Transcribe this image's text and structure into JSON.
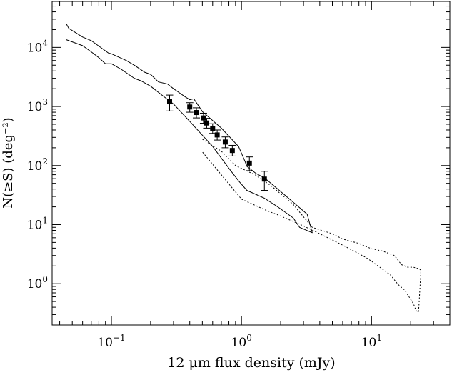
{
  "chart_data": {
    "type": "scatter",
    "xlabel": "12 μm flux density (mJy)",
    "ylabel": "N(≥S)  (deg⁻²)",
    "xscale": "log",
    "yscale": "log",
    "xlim": [
      0.035,
      40
    ],
    "ylim": [
      0.2,
      60000
    ],
    "grid": false,
    "legend": "none",
    "x_ticks": [
      {
        "value": 0.1,
        "base": "10",
        "exp": "−1"
      },
      {
        "value": 1,
        "base": "10",
        "exp": "0"
      },
      {
        "value": 10,
        "base": "10",
        "exp": "1"
      }
    ],
    "y_ticks": [
      {
        "value": 1,
        "base": "10",
        "exp": "0"
      },
      {
        "value": 10,
        "base": "10",
        "exp": "1"
      },
      {
        "value": 100,
        "base": "10",
        "exp": "2"
      },
      {
        "value": 1000,
        "base": "10",
        "exp": "3"
      },
      {
        "value": 10000,
        "base": "10",
        "exp": "4"
      }
    ],
    "points": [
      {
        "x": 0.28,
        "y": 1200,
        "ylo": 840,
        "yhi": 1560
      },
      {
        "x": 0.4,
        "y": 980,
        "ylo": 800,
        "yhi": 1160
      },
      {
        "x": 0.45,
        "y": 790,
        "ylo": 640,
        "yhi": 950
      },
      {
        "x": 0.51,
        "y": 640,
        "ylo": 520,
        "yhi": 770
      },
      {
        "x": 0.54,
        "y": 525,
        "ylo": 430,
        "yhi": 630
      },
      {
        "x": 0.6,
        "y": 425,
        "ylo": 350,
        "yhi": 510
      },
      {
        "x": 0.65,
        "y": 330,
        "ylo": 270,
        "yhi": 400
      },
      {
        "x": 0.75,
        "y": 250,
        "ylo": 200,
        "yhi": 305
      },
      {
        "x": 0.85,
        "y": 180,
        "ylo": 145,
        "yhi": 220
      },
      {
        "x": 1.15,
        "y": 110,
        "ylo": 82,
        "yhi": 140
      },
      {
        "x": 1.5,
        "y": 59,
        "ylo": 38,
        "yhi": 80
      }
    ],
    "lines": [
      {
        "style": "solid",
        "x": [
          0.045,
          0.047,
          0.06,
          0.07,
          0.095,
          0.1,
          0.13,
          0.15,
          0.18,
          0.2,
          0.23,
          0.27,
          0.3,
          0.37,
          0.4,
          0.43,
          0.5,
          0.7,
          0.95,
          1.07,
          1.1,
          1.3,
          1.5,
          2.3,
          3.2,
          3.5,
          2.8,
          2.5,
          1.9,
          1.5,
          1.1,
          0.95,
          0.8,
          0.6,
          0.4,
          0.3,
          0.25,
          0.2,
          0.17,
          0.15,
          0.12,
          0.1,
          0.09,
          0.08,
          0.07,
          0.06,
          0.045
        ],
        "y": [
          25000,
          21000,
          15000,
          13000,
          8000,
          7800,
          6000,
          5000,
          3800,
          3500,
          2600,
          2400,
          2000,
          1450,
          1300,
          1350,
          820,
          430,
          210,
          115,
          97,
          73,
          62,
          28,
          15,
          7.3,
          9,
          13,
          20,
          28,
          38,
          55,
          90,
          210,
          560,
          1100,
          1500,
          2200,
          2700,
          3000,
          4200,
          5300,
          5300,
          6700,
          8400,
          10700,
          13500
        ]
      },
      {
        "style": "dotted",
        "x": [
          0.5,
          0.7,
          0.9,
          1.3,
          1.7,
          2.5,
          3.5,
          5.0,
          6.0,
          8.0,
          10.0,
          12.0,
          15.0,
          17.0,
          19.0,
          21.0,
          23.0,
          24.0,
          23.0,
          22.0,
          21.0,
          18.0,
          16.0,
          14.0,
          12.0,
          10.0,
          9.0,
          6.0,
          4.0,
          3.0,
          2.0,
          1.5,
          1.0,
          0.5
        ],
        "y": [
          280,
          175,
          100,
          68,
          45,
          22,
          9,
          7,
          5.7,
          4.8,
          3.9,
          3.6,
          3.0,
          2.1,
          1.9,
          1.9,
          1.8,
          1.7,
          0.33,
          0.35,
          0.46,
          0.78,
          0.97,
          1.4,
          1.8,
          2.4,
          2.8,
          4.5,
          7,
          9.5,
          14,
          18,
          27,
          170
        ]
      }
    ]
  }
}
